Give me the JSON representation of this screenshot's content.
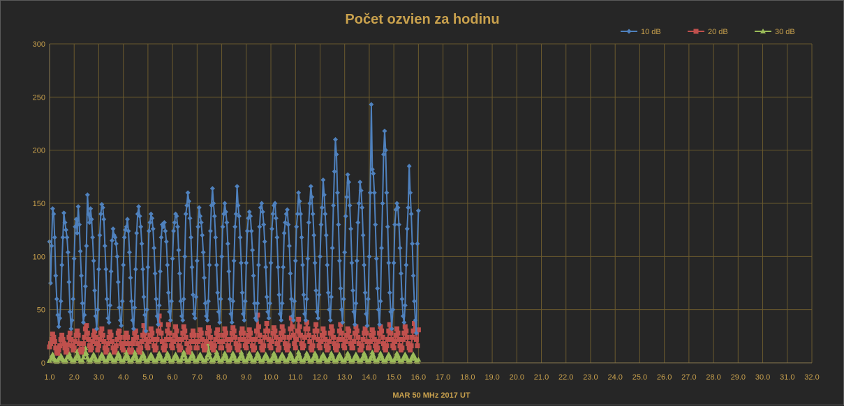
{
  "chart_data": {
    "type": "line",
    "title": "Počet ozvien za hodinu",
    "xlabel": "MAR 50 MHz  2017  UT",
    "ylabel": "",
    "xlim": [
      1.0,
      32.0
    ],
    "ylim": [
      0,
      300
    ],
    "y_ticks": [
      "0",
      "50",
      "100",
      "150",
      "200",
      "250",
      "300"
    ],
    "x_ticks": [
      "1.0",
      "2.0",
      "3.0",
      "4.0",
      "5.0",
      "6.0",
      "7.0",
      "8.0",
      "9.0",
      "10.0",
      "11.0",
      "12.0",
      "13.0",
      "14.0",
      "15.0",
      "16.0",
      "17.0",
      "18.0",
      "19.0",
      "20.0",
      "21.0",
      "22.0",
      "23.0",
      "24.0",
      "25.0",
      "26.0",
      "27.0",
      "28.0",
      "29.0",
      "30.0",
      "31.0",
      "32.0"
    ],
    "grid": true,
    "legend_position": "top-right",
    "samples_per_day": 24,
    "series": [
      {
        "name": "10 dB",
        "color": "#4f81bd",
        "marker": "diamond",
        "daily_peak": [
          145,
          147,
          158,
          149,
          126,
          146,
          147,
          136,
          140,
          164,
          154,
          164,
          150,
          166,
          141,
          150,
          150,
          143,
          160,
          166,
          172,
          210,
          177,
          170,
          243,
          218,
          185
        ],
        "daily_min": [
          32,
          35,
          40,
          35,
          38,
          30,
          38,
          40,
          42,
          42,
          40,
          40,
          38,
          35,
          40,
          38,
          40,
          42,
          40,
          38,
          42,
          36,
          35,
          35,
          35,
          28,
          28
        ],
        "values": [
          114,
          75,
          110,
          145,
          140,
          118,
          82,
          60,
          45,
          34,
          42,
          58,
          92,
          118,
          141,
          132,
          125,
          118,
          104,
          76,
          48,
          32,
          40,
          60,
          98,
          128,
          135,
          122,
          147,
          130,
          105,
          82,
          56,
          38,
          45,
          72,
          110,
          158,
          140,
          132,
          145,
          135,
          118,
          96,
          68,
          44,
          32,
          50,
          88,
          120,
          140,
          149,
          146,
          135,
          110,
          88,
          60,
          42,
          38,
          54,
          86,
          115,
          126,
          120,
          118,
          112,
          100,
          76,
          52,
          40,
          35,
          58,
          92,
          118,
          125,
          128,
          135,
          124,
          104,
          80,
          58,
          40,
          32,
          52,
          88,
          122,
          140,
          147,
          138,
          128,
          112,
          88,
          62,
          45,
          30,
          50,
          90,
          124,
          132,
          140,
          136,
          126,
          108,
          84,
          60,
          44,
          36,
          54,
          86,
          118,
          130,
          128,
          132,
          124,
          114,
          92,
          66,
          48,
          40,
          58,
          98,
          124,
          132,
          140,
          138,
          128,
          106,
          84,
          58,
          44,
          40,
          60,
          100,
          140,
          148,
          160,
          152,
          136,
          118,
          90,
          64,
          46,
          42,
          62,
          96,
          128,
          146,
          138,
          132,
          120,
          104,
          80,
          56,
          44,
          40,
          58,
          92,
          124,
          148,
          164,
          150,
          138,
          118,
          92,
          66,
          48,
          38,
          60,
          100,
          128,
          140,
          150,
          142,
          132,
          112,
          86,
          60,
          46,
          38,
          58,
          96,
          128,
          140,
          166,
          148,
          138,
          118,
          94,
          66,
          46,
          40,
          58,
          94,
          124,
          136,
          142,
          138,
          124,
          106,
          82,
          56,
          42,
          40,
          56,
          92,
          128,
          146,
          150,
          142,
          130,
          114,
          90,
          62,
          48,
          42,
          56,
          94,
          126,
          140,
          148,
          150,
          136,
          118,
          90,
          64,
          46,
          40,
          56,
          90,
          122,
          132,
          140,
          144,
          130,
          110,
          84,
          60,
          44,
          40,
          58,
          96,
          128,
          140,
          160,
          152,
          140,
          118,
          92,
          64,
          46,
          40,
          60,
          98,
          132,
          150,
          166,
          156,
          140,
          120,
          94,
          68,
          48,
          42,
          64,
          100,
          130,
          146,
          172,
          158,
          140,
          120,
          92,
          66,
          50,
          40,
          62,
          108,
          148,
          180,
          210,
          196,
          160,
          130,
          96,
          70,
          50,
          38,
          60,
          104,
          138,
          156,
          177,
          170,
          148,
          126,
          94,
          68,
          48,
          36,
          56,
          96,
          132,
          150,
          170,
          162,
          146,
          120,
          92,
          66,
          46,
          35,
          60,
          100,
          160,
          243,
          182,
          178,
          160,
          130,
          98,
          70,
          50,
          36,
          58,
          108,
          150,
          196,
          218,
          200,
          160,
          128,
          94,
          66,
          48,
          32,
          50,
          94,
          130,
          144,
          150,
          146,
          130,
          108,
          84,
          60,
          44,
          38,
          54,
          92,
          126,
          146,
          185,
          160,
          140,
          112,
          82,
          58,
          40,
          28,
          112,
          143
        ]
      },
      {
        "name": "20 dB",
        "color": "#c0504d",
        "marker": "square",
        "daily_peak": [
          27,
          30,
          35,
          32,
          29,
          30,
          28,
          30,
          35,
          44,
          36,
          34,
          30,
          31,
          33,
          31,
          32,
          33,
          32,
          31,
          45,
          37,
          33,
          34,
          42,
          41,
          38
        ],
        "daily_min": [
          8,
          8,
          9,
          9,
          8,
          8,
          8,
          9,
          9,
          9,
          8,
          8,
          8,
          9,
          8,
          8,
          8,
          9,
          8,
          8,
          9,
          9,
          8,
          8,
          8,
          8,
          8
        ],
        "values": [
          15,
          18,
          22,
          27,
          24,
          20,
          14,
          10,
          9,
          12,
          16,
          22,
          26,
          22,
          18,
          14,
          10,
          12,
          17,
          24,
          28,
          22,
          16,
          12,
          14,
          20,
          26,
          30,
          26,
          18,
          12,
          10,
          13,
          18,
          24,
          32,
          35,
          28,
          22,
          16,
          12,
          14,
          20,
          26,
          30,
          24,
          18,
          12,
          16,
          22,
          28,
          32,
          26,
          20,
          14,
          10,
          12,
          18,
          24,
          29,
          26,
          20,
          14,
          10,
          12,
          16,
          22,
          28,
          30,
          24,
          18,
          14,
          12,
          18,
          24,
          28,
          24,
          18,
          12,
          10,
          12,
          18,
          22,
          28,
          30,
          24,
          18,
          12,
          10,
          14,
          20,
          26,
          35,
          28,
          22,
          16,
          14,
          20,
          26,
          32,
          28,
          22,
          16,
          12,
          14,
          22,
          30,
          44,
          36,
          28,
          20,
          14,
          12,
          16,
          22,
          30,
          36,
          28,
          22,
          16,
          14,
          20,
          26,
          34,
          30,
          22,
          16,
          12,
          14,
          22,
          28,
          34,
          30,
          24,
          18,
          12,
          10,
          14,
          20,
          26,
          30,
          26,
          20,
          14,
          14,
          20,
          26,
          31,
          28,
          22,
          16,
          12,
          14,
          20,
          28,
          33,
          30,
          24,
          18,
          14,
          12,
          16,
          22,
          28,
          31,
          26,
          20,
          14,
          14,
          20,
          26,
          32,
          28,
          22,
          16,
          12,
          14,
          22,
          28,
          33,
          30,
          24,
          18,
          14,
          12,
          16,
          22,
          28,
          32,
          28,
          22,
          16,
          14,
          20,
          26,
          31,
          28,
          22,
          16,
          12,
          14,
          22,
          30,
          45,
          34,
          26,
          20,
          14,
          12,
          16,
          24,
          30,
          37,
          30,
          22,
          16,
          14,
          20,
          28,
          33,
          30,
          24,
          18,
          12,
          14,
          22,
          28,
          34,
          30,
          24,
          18,
          14,
          12,
          16,
          24,
          32,
          42,
          34,
          26,
          18,
          14,
          22,
          30,
          41,
          34,
          26,
          18,
          14,
          16,
          24,
          32,
          38,
          32,
          26,
          20,
          14,
          12,
          16,
          24,
          30,
          36,
          30,
          22,
          16,
          14,
          20,
          26,
          32,
          28,
          22,
          16,
          12,
          14,
          20,
          28,
          34,
          30,
          24,
          18,
          14,
          12,
          16,
          22,
          30,
          36,
          28,
          22,
          16,
          14,
          20,
          26,
          32,
          30,
          24,
          18,
          14,
          14,
          20,
          28,
          34,
          30,
          24,
          18,
          12,
          12,
          16,
          22,
          28,
          32,
          28,
          20,
          14,
          14,
          20,
          26,
          31,
          28,
          22,
          16,
          12,
          14,
          20,
          28,
          34,
          30,
          24,
          18,
          14,
          12,
          16,
          22,
          30,
          36,
          28,
          22,
          16,
          14,
          20,
          26,
          32,
          28,
          22,
          16,
          12,
          14,
          22,
          28,
          34,
          30,
          24,
          18,
          14,
          12,
          16,
          24,
          30,
          37,
          30,
          22,
          16,
          31
        ]
      },
      {
        "name": "30 dB",
        "color": "#9bbb59",
        "marker": "triangle",
        "daily_peak": [
          8,
          9,
          11,
          14,
          7,
          8,
          8,
          9,
          10,
          10,
          9,
          8,
          9,
          9,
          8,
          9,
          10,
          9,
          8,
          9,
          18,
          10,
          9,
          9,
          10,
          9,
          8
        ],
        "values": [
          2,
          4,
          6,
          8,
          5,
          3,
          2,
          1,
          2,
          4,
          6,
          7,
          5,
          3,
          2,
          1,
          2,
          5,
          7,
          9,
          6,
          4,
          2,
          1,
          2,
          4,
          6,
          11,
          7,
          4,
          2,
          1,
          2,
          5,
          8,
          14,
          9,
          5,
          3,
          1,
          2,
          4,
          6,
          8,
          6,
          3,
          2,
          1,
          2,
          4,
          6,
          8,
          6,
          4,
          2,
          1,
          2,
          4,
          7,
          8,
          6,
          4,
          2,
          1,
          2,
          4,
          6,
          9,
          7,
          4,
          2,
          1,
          2,
          4,
          6,
          10,
          7,
          4,
          2,
          1,
          2,
          4,
          6,
          10,
          7,
          4,
          2,
          1,
          2,
          4,
          6,
          9,
          7,
          4,
          2,
          1,
          2,
          4,
          6,
          8,
          6,
          4,
          2,
          1,
          2,
          4,
          6,
          9,
          7,
          4,
          2,
          1,
          2,
          4,
          6,
          9,
          7,
          4,
          2,
          1,
          2,
          4,
          6,
          8,
          6,
          4,
          2,
          1,
          2,
          4,
          7,
          10,
          7,
          4,
          2,
          1,
          2,
          4,
          6,
          9,
          7,
          4,
          2,
          1,
          2,
          4,
          6,
          8,
          6,
          4,
          2,
          1,
          2,
          4,
          7,
          18,
          9,
          5,
          2,
          1,
          2,
          4,
          6,
          10,
          7,
          4,
          2,
          1,
          2,
          4,
          6,
          9,
          7,
          4,
          2,
          1,
          2,
          4,
          6,
          9,
          7,
          4,
          2,
          1,
          2,
          4,
          6,
          10,
          7,
          4,
          2,
          1,
          2,
          4,
          6,
          9,
          7,
          4,
          2,
          1,
          2,
          4,
          6,
          9,
          7,
          4,
          2,
          1,
          2,
          4,
          6,
          8,
          6,
          4,
          2,
          1,
          2,
          4,
          6,
          9,
          7,
          4,
          2,
          1,
          2,
          4,
          6,
          8,
          6,
          4,
          2,
          1,
          2,
          4,
          6,
          9,
          7,
          4,
          2,
          1,
          2,
          4,
          6,
          10,
          7,
          4,
          2,
          1,
          2,
          4,
          6,
          9,
          7,
          4,
          2,
          1,
          2,
          4,
          6,
          9,
          7,
          4,
          2,
          1,
          2,
          4,
          6,
          8,
          6,
          4,
          2,
          1,
          2,
          4,
          6,
          9,
          7,
          4,
          2,
          1,
          2,
          4,
          6,
          8,
          6,
          4,
          2,
          1,
          2,
          4,
          6,
          9,
          7,
          4,
          2,
          1,
          2,
          4,
          6,
          8,
          6,
          4,
          2,
          1,
          2,
          4,
          6,
          9,
          7,
          4,
          2,
          1,
          2,
          4,
          6,
          10,
          7,
          4,
          2,
          1,
          2,
          4,
          6,
          9,
          7,
          4,
          2,
          1,
          2,
          4,
          6,
          8,
          6,
          4,
          2,
          1,
          2,
          4,
          6,
          9,
          7,
          4,
          2,
          1,
          2,
          4,
          6,
          8,
          6,
          4,
          2,
          1,
          2,
          4,
          6,
          8,
          6,
          4,
          2,
          1,
          3
        ]
      }
    ]
  }
}
